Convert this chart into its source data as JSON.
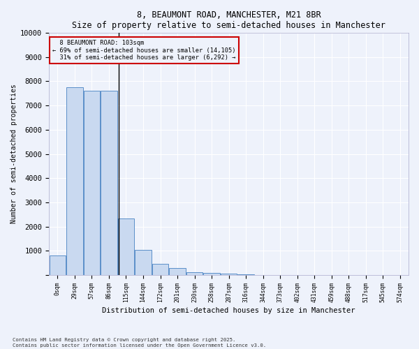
{
  "title": "8, BEAUMONT ROAD, MANCHESTER, M21 8BR",
  "subtitle": "Size of property relative to semi-detached houses in Manchester",
  "xlabel": "Distribution of semi-detached houses by size in Manchester",
  "ylabel": "Number of semi-detached properties",
  "bar_labels": [
    "0sqm",
    "29sqm",
    "57sqm",
    "86sqm",
    "115sqm",
    "144sqm",
    "172sqm",
    "201sqm",
    "230sqm",
    "258sqm",
    "287sqm",
    "316sqm",
    "344sqm",
    "373sqm",
    "402sqm",
    "431sqm",
    "459sqm",
    "488sqm",
    "517sqm",
    "545sqm",
    "574sqm"
  ],
  "bar_values": [
    800,
    7750,
    7600,
    7600,
    2350,
    1030,
    460,
    280,
    120,
    100,
    70,
    20,
    10,
    5,
    2,
    1,
    1,
    1,
    1,
    0,
    0
  ],
  "bar_color": "#c9d9f0",
  "bar_edge_color": "#5b8fc9",
  "property_label": "8 BEAUMONT ROAD: 103sqm",
  "pct_smaller": 69,
  "pct_larger": 31,
  "n_smaller": 14105,
  "n_larger": 6292,
  "vline_color": "#000000",
  "annotation_box_color": "#cc0000",
  "ylim": [
    0,
    10000
  ],
  "yticks": [
    0,
    1000,
    2000,
    3000,
    4000,
    5000,
    6000,
    7000,
    8000,
    9000,
    10000
  ],
  "background_color": "#eef2fb",
  "grid_color": "#ffffff",
  "footer_line1": "Contains HM Land Registry data © Crown copyright and database right 2025.",
  "footer_line2": "Contains public sector information licensed under the Open Government Licence v3.0."
}
